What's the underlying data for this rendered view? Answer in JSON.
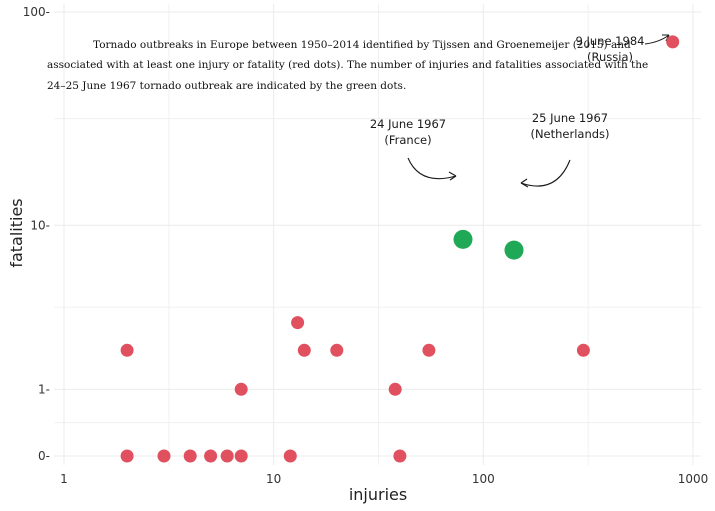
{
  "chart_data": {
    "type": "scatter",
    "title": "",
    "caption_lines": [
      "Tornado outbreaks in Europe between 1950–2014 identified by Tijssen and Groenemeijer (2015) and",
      "associated with at least one injury or fatality (red dots). The number of injuries and fatalities associated with the",
      "24–25 June 1967 tornado outbreak are indicated by the green dots."
    ],
    "xlabel": "injuries",
    "ylabel": "fatalities",
    "x_scale": "log",
    "x_ticks": [
      1,
      10,
      100,
      1000
    ],
    "x_tick_labels": [
      "1",
      "10",
      "100",
      "1000"
    ],
    "xlim": [
      1,
      1000
    ],
    "y_scale": "log(y+1)",
    "y_ticks": [
      0,
      1,
      10,
      100
    ],
    "y_tick_labels": [
      "0",
      "1",
      "10",
      "100"
    ],
    "ylim": [
      0,
      100
    ],
    "grid": true,
    "colors": {
      "red": "#e0505f",
      "green": "#1fa855"
    },
    "series": [
      {
        "color": "red",
        "points": [
          {
            "x": 2,
            "y": 0
          },
          {
            "x": 3,
            "y": 0
          },
          {
            "x": 4,
            "y": 0
          },
          {
            "x": 5,
            "y": 0
          },
          {
            "x": 6,
            "y": 0
          },
          {
            "x": 7,
            "y": 0
          },
          {
            "x": 12,
            "y": 0
          },
          {
            "x": 40,
            "y": 0
          },
          {
            "x": 7,
            "y": 1
          },
          {
            "x": 38,
            "y": 1
          },
          {
            "x": 2,
            "y": 2
          },
          {
            "x": 14,
            "y": 2
          },
          {
            "x": 20,
            "y": 2
          },
          {
            "x": 55,
            "y": 2
          },
          {
            "x": 300,
            "y": 2
          },
          {
            "x": 13,
            "y": 3
          },
          {
            "x": 800,
            "y": 73
          }
        ]
      },
      {
        "color": "green",
        "points": [
          {
            "x": 80,
            "y": 8.5
          },
          {
            "x": 140,
            "y": 7.5
          }
        ]
      }
    ],
    "annotations": [
      {
        "text": [
          "9 June 1984",
          "(Russia)"
        ],
        "x": 800,
        "y": 73
      },
      {
        "text": [
          "24 June 1967",
          "(France)"
        ],
        "x": 80,
        "y": 8.5
      },
      {
        "text": [
          "25 June 1967",
          "(Netherlands)"
        ],
        "x": 140,
        "y": 7.5
      }
    ]
  }
}
